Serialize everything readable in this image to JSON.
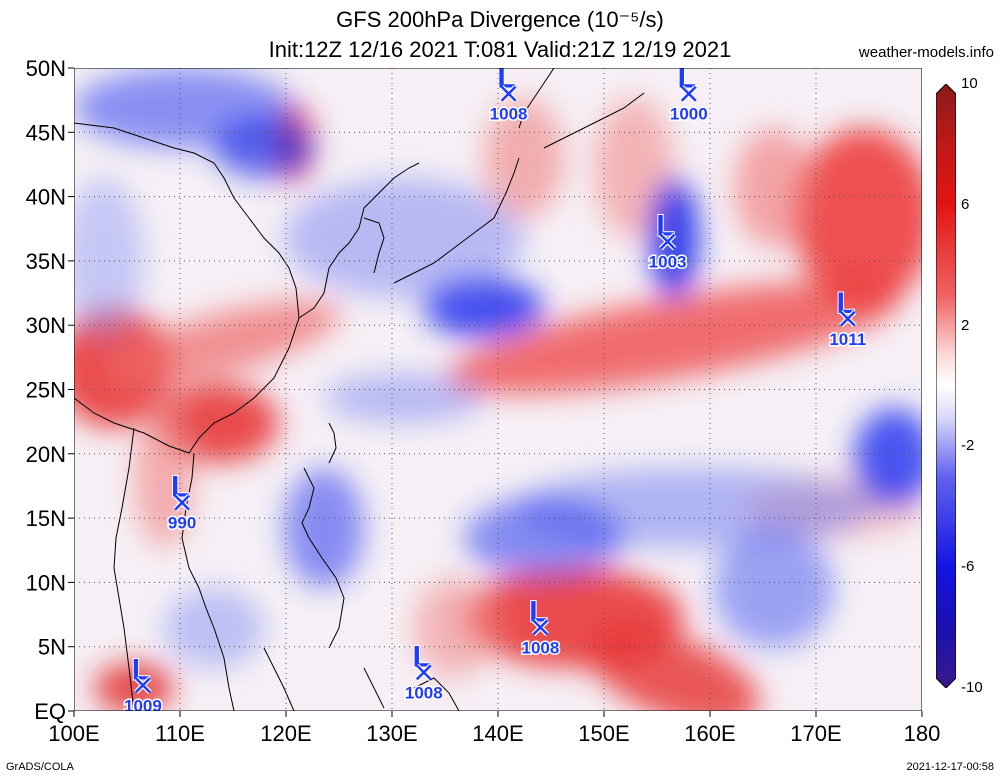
{
  "header": {
    "title_line1": "GFS 200hPa Divergence (10⁻⁵/s)",
    "title_line2": "Init:12Z 12/16 2021 T:081 Valid:21Z 12/19 2021",
    "credit": "weather-models.info"
  },
  "footer": {
    "left": "GrADS/COLA",
    "right": "2021-12-17-00:58"
  },
  "axes": {
    "lat_labels": [
      "EQ",
      "5N",
      "10N",
      "15N",
      "20N",
      "25N",
      "30N",
      "35N",
      "40N",
      "45N",
      "50N"
    ],
    "lat_values": [
      0,
      5,
      10,
      15,
      20,
      25,
      30,
      35,
      40,
      45,
      50
    ],
    "lon_labels": [
      "100E",
      "110E",
      "120E",
      "130E",
      "140E",
      "150E",
      "160E",
      "170E",
      "180"
    ],
    "lon_values": [
      100,
      110,
      120,
      130,
      140,
      150,
      160,
      170,
      180
    ],
    "lon_range": [
      100,
      180
    ],
    "lat_range": [
      0,
      50
    ],
    "grid": "dotted"
  },
  "colorbar": {
    "ticks": [
      "10",
      "6",
      "2",
      "-2",
      "-6",
      "-10"
    ],
    "colors": [
      "#8b1a1a",
      "#e21414",
      "#f06262",
      "#fbdada",
      "#ffffff",
      "#dadaf8",
      "#6262f0",
      "#1414e2",
      "#3a1a8b"
    ]
  },
  "lows": [
    {
      "label": "L",
      "pressure": "1008",
      "lon": 141.0,
      "lat": 48.0
    },
    {
      "label": "L",
      "pressure": "1000",
      "lon": 158.0,
      "lat": 48.0
    },
    {
      "label": "L",
      "pressure": "1003",
      "lon": 156.0,
      "lat": 36.5
    },
    {
      "label": "L",
      "pressure": "1011",
      "lon": 173.0,
      "lat": 30.5
    },
    {
      "label": "L",
      "pressure": "990",
      "lon": 110.2,
      "lat": 16.2
    },
    {
      "label": "L",
      "pressure": "1008",
      "lon": 144.0,
      "lat": 6.5
    },
    {
      "label": "L",
      "pressure": "1008",
      "lon": 133.0,
      "lat": 3.0
    },
    {
      "label": "L",
      "pressure": "1009",
      "lon": 106.5,
      "lat": 2.0
    }
  ],
  "colors": {
    "low_marker": "#1f3bff",
    "positive": "#e02020",
    "negative": "#1e32ff"
  }
}
